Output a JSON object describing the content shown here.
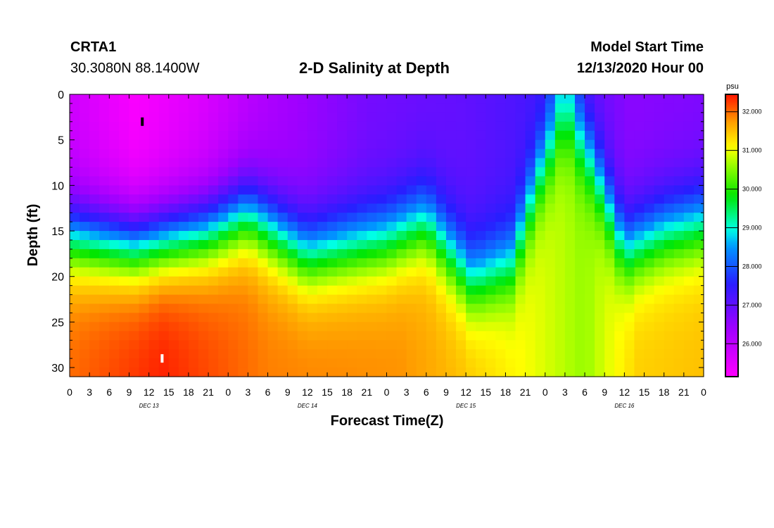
{
  "header": {
    "station": "CRTA1",
    "latlon": "30.3080N 88.1400W",
    "title": "2-D Salinity at Depth",
    "model_start_label": "Model Start Time",
    "model_start_value": "12/13/2020 Hour 00"
  },
  "chart_data": {
    "type": "heatmap",
    "title": "2-D Salinity at Depth",
    "xlabel": "Forecast Time(Z)",
    "ylabel": "Depth (ft)",
    "x_range_hours": [
      0,
      96
    ],
    "y_range_ft": [
      0,
      31
    ],
    "x_ticks": [
      "0",
      "3",
      "6",
      "9",
      "12",
      "15",
      "18",
      "21",
      "0",
      "3",
      "6",
      "9",
      "12",
      "15",
      "18",
      "21",
      "0",
      "3",
      "6",
      "9",
      "12",
      "15",
      "18",
      "21",
      "0",
      "3",
      "6",
      "9",
      "12",
      "15",
      "18",
      "21",
      "0"
    ],
    "date_labels": [
      {
        "label": "DEC 13",
        "hour": 12
      },
      {
        "label": "DEC 14",
        "hour": 36
      },
      {
        "label": "DEC 15",
        "hour": 60
      },
      {
        "label": "DEC 16",
        "hour": 84
      }
    ],
    "y_ticks": [
      0,
      5,
      10,
      15,
      20,
      25,
      30
    ],
    "colorbar": {
      "unit": "psu",
      "min": 25.15,
      "max": 32.45,
      "tick_labels": [
        "26.000",
        "27.000",
        "28.000",
        "29.000",
        "30.000",
        "31.000",
        "32.000"
      ]
    },
    "surface_salinity_profile": [
      {
        "hour": 0,
        "psu": 25.8
      },
      {
        "hour": 10,
        "psu": 25.2
      },
      {
        "hour": 20,
        "psu": 25.6
      },
      {
        "hour": 30,
        "psu": 26.2
      },
      {
        "hour": 45,
        "psu": 26.8
      },
      {
        "hour": 60,
        "psu": 27.0
      },
      {
        "hour": 72,
        "psu": 27.3
      },
      {
        "hour": 75,
        "psu": 28.5
      },
      {
        "hour": 78,
        "psu": 27.0
      },
      {
        "hour": 85,
        "psu": 26.6
      },
      {
        "hour": 96,
        "psu": 26.7
      }
    ],
    "bottom_salinity_profile": [
      {
        "hour": 0,
        "psu": 32.0
      },
      {
        "hour": 14,
        "psu": 32.4
      },
      {
        "hour": 30,
        "psu": 31.9
      },
      {
        "hour": 50,
        "psu": 31.8
      },
      {
        "hour": 60,
        "psu": 31.5
      },
      {
        "hour": 72,
        "psu": 30.9
      },
      {
        "hour": 78,
        "psu": 30.6
      },
      {
        "hour": 86,
        "psu": 31.4
      },
      {
        "hour": 96,
        "psu": 31.5
      }
    ],
    "halocline_depth_ft": [
      {
        "hour": 0,
        "depth": 15.5
      },
      {
        "hour": 10,
        "depth": 16.5
      },
      {
        "hour": 21,
        "depth": 15.0
      },
      {
        "hour": 27,
        "depth": 13.0
      },
      {
        "hour": 36,
        "depth": 17.5
      },
      {
        "hour": 48,
        "depth": 16.0
      },
      {
        "hour": 54,
        "depth": 14.0
      },
      {
        "hour": 61,
        "depth": 20.5
      },
      {
        "hour": 67,
        "depth": 18.5
      },
      {
        "hour": 71,
        "depth": 9.0
      },
      {
        "hour": 75,
        "depth": 2.0
      },
      {
        "hour": 79,
        "depth": 7.0
      },
      {
        "hour": 84,
        "depth": 17.0
      },
      {
        "hour": 90,
        "depth": 15.0
      },
      {
        "hour": 96,
        "depth": 14.0
      }
    ],
    "markers": [
      {
        "hour": 11,
        "depth_ft": 3,
        "color": "black"
      },
      {
        "hour": 14,
        "depth_ft": 29,
        "color": "white"
      }
    ]
  }
}
